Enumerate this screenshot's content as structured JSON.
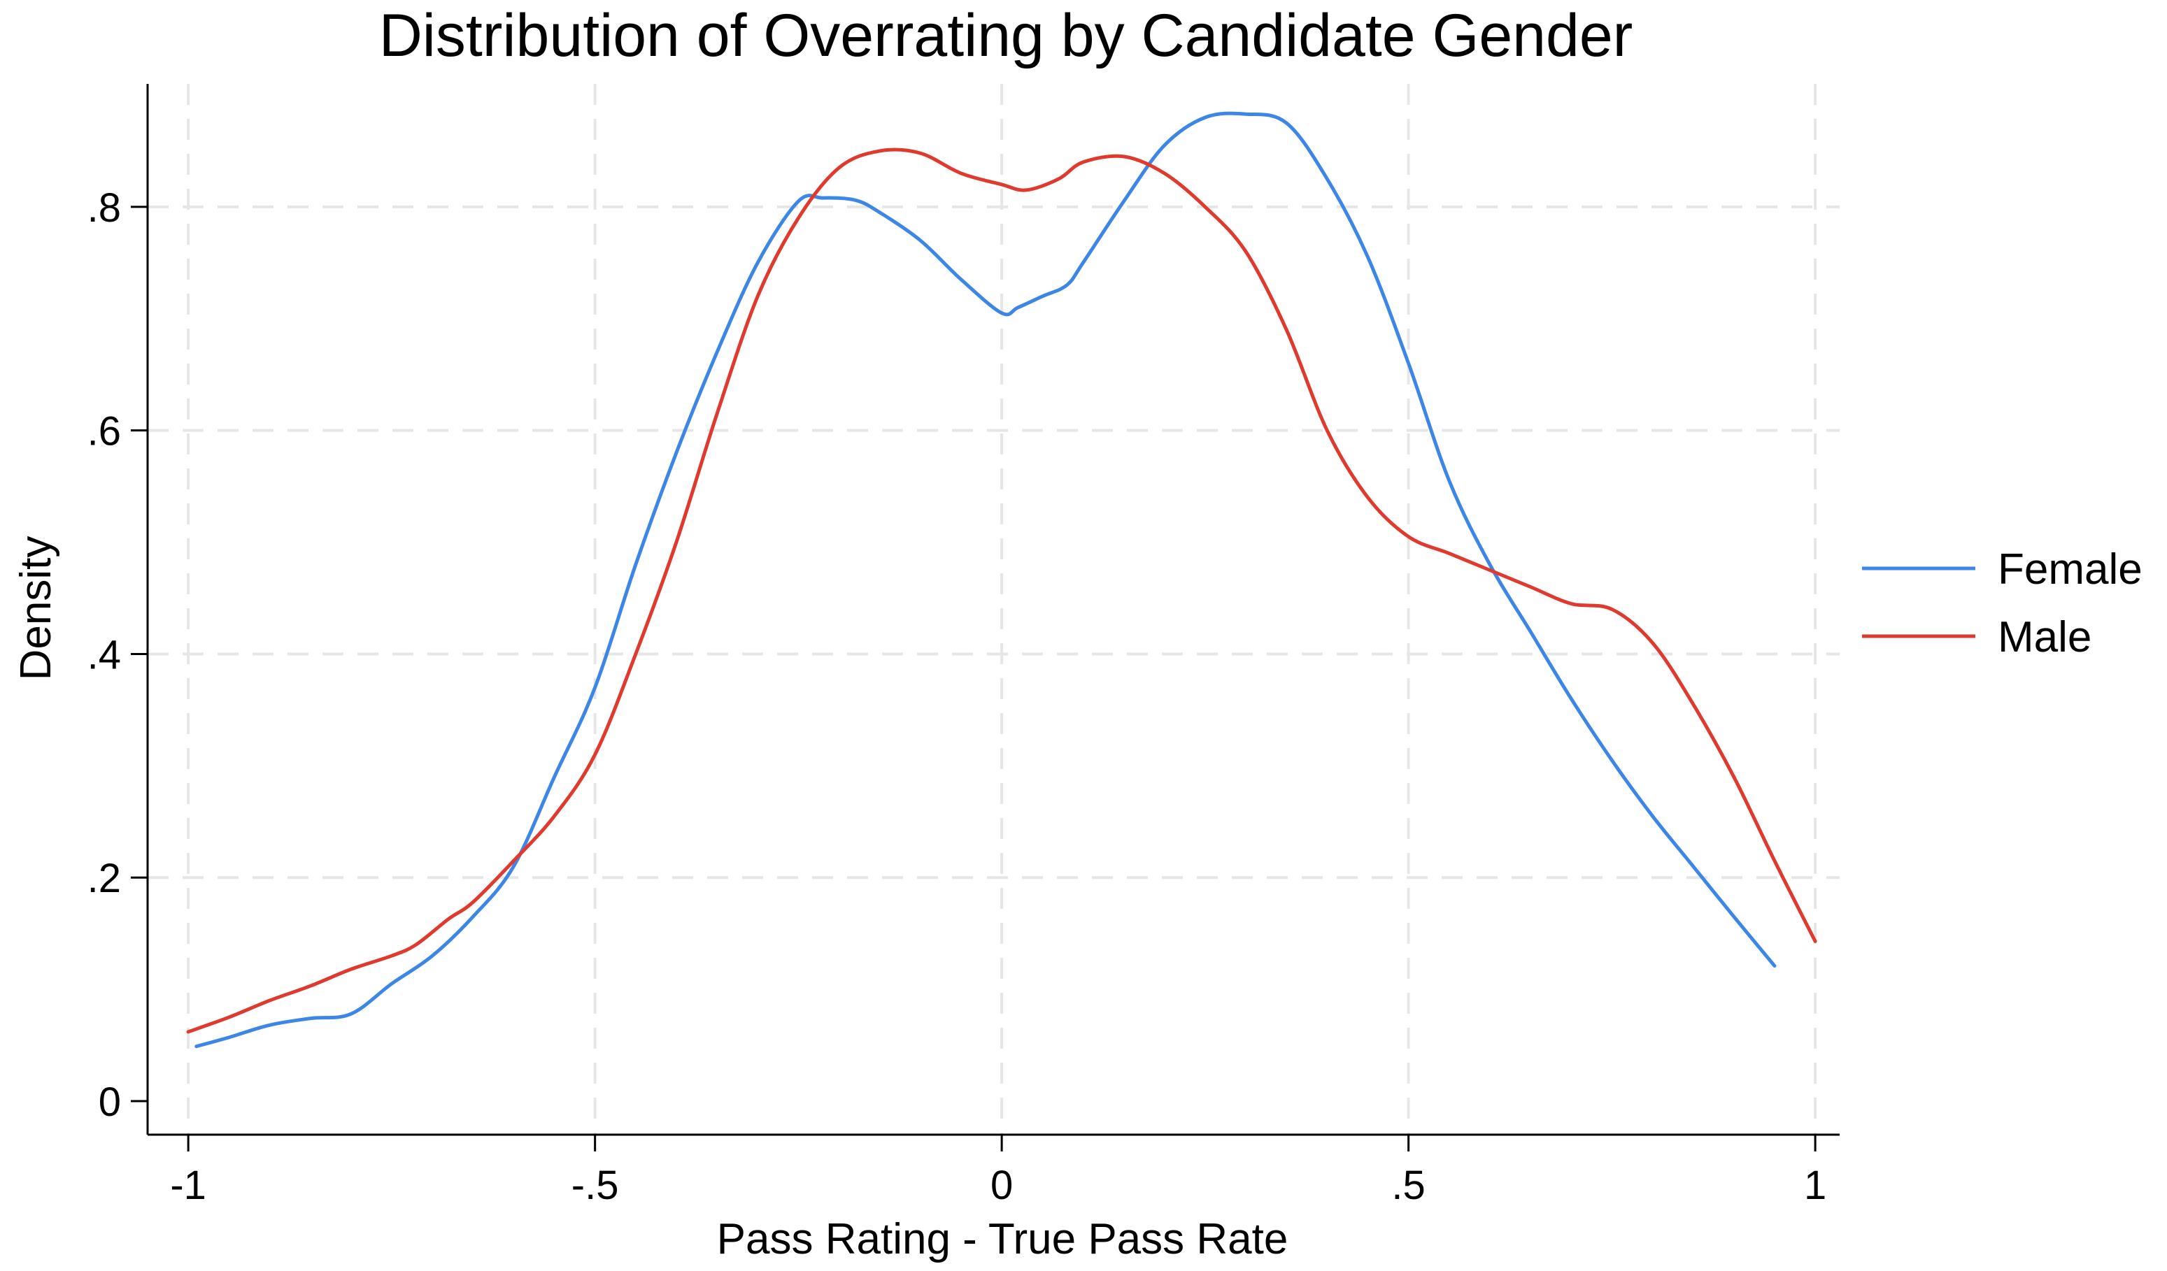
{
  "chart_data": {
    "type": "line",
    "title": "Distribution of Overrating by Candidate Gender",
    "xlabel": "Pass Rating - True Pass Rate",
    "ylabel": "Density",
    "xlim": [
      -1.05,
      1.03
    ],
    "ylim": [
      -0.03,
      0.91
    ],
    "x_ticks": [
      {
        "value": -1,
        "label": "-1"
      },
      {
        "value": -0.5,
        "label": "-.5"
      },
      {
        "value": 0,
        "label": "0"
      },
      {
        "value": 0.5,
        "label": ".5"
      },
      {
        "value": 1,
        "label": "1"
      }
    ],
    "y_ticks": [
      {
        "value": 0,
        "label": "0"
      },
      {
        "value": 0.2,
        "label": ".2"
      },
      {
        "value": 0.4,
        "label": ".4"
      },
      {
        "value": 0.6,
        "label": ".6"
      },
      {
        "value": 0.8,
        "label": ".8"
      }
    ],
    "grid": true,
    "legend_position": "right",
    "series": [
      {
        "name": "Female",
        "color": "#3c86e8",
        "x": [
          -0.99,
          -0.95,
          -0.9,
          -0.85,
          -0.8,
          -0.75,
          -0.7,
          -0.65,
          -0.6,
          -0.55,
          -0.5,
          -0.45,
          -0.4,
          -0.35,
          -0.3,
          -0.25,
          -0.22,
          -0.18,
          -0.15,
          -0.1,
          -0.05,
          0.0,
          0.02,
          0.05,
          0.08,
          0.1,
          0.15,
          0.2,
          0.25,
          0.3,
          0.35,
          0.4,
          0.45,
          0.5,
          0.55,
          0.6,
          0.65,
          0.7,
          0.75,
          0.8,
          0.85,
          0.9,
          0.95
        ],
        "y": [
          0.049,
          0.057,
          0.068,
          0.074,
          0.078,
          0.105,
          0.13,
          0.165,
          0.21,
          0.29,
          0.37,
          0.48,
          0.58,
          0.67,
          0.75,
          0.805,
          0.808,
          0.806,
          0.795,
          0.77,
          0.735,
          0.705,
          0.71,
          0.72,
          0.73,
          0.75,
          0.805,
          0.855,
          0.88,
          0.883,
          0.875,
          0.825,
          0.755,
          0.66,
          0.555,
          0.48,
          0.42,
          0.36,
          0.305,
          0.255,
          0.21,
          0.165,
          0.121
        ]
      },
      {
        "name": "Male",
        "color": "#e03a2e",
        "x": [
          -1.0,
          -0.95,
          -0.9,
          -0.85,
          -0.8,
          -0.75,
          -0.72,
          -0.68,
          -0.65,
          -0.6,
          -0.55,
          -0.5,
          -0.45,
          -0.4,
          -0.35,
          -0.3,
          -0.25,
          -0.2,
          -0.15,
          -0.1,
          -0.05,
          0.0,
          0.03,
          0.07,
          0.1,
          0.15,
          0.2,
          0.25,
          0.3,
          0.35,
          0.4,
          0.45,
          0.5,
          0.55,
          0.6,
          0.65,
          0.7,
          0.75,
          0.8,
          0.85,
          0.9,
          0.95,
          1.0
        ],
        "y": [
          0.062,
          0.075,
          0.09,
          0.103,
          0.118,
          0.13,
          0.14,
          0.163,
          0.178,
          0.215,
          0.255,
          0.31,
          0.4,
          0.5,
          0.615,
          0.72,
          0.79,
          0.835,
          0.85,
          0.848,
          0.83,
          0.82,
          0.815,
          0.825,
          0.84,
          0.845,
          0.83,
          0.8,
          0.76,
          0.69,
          0.6,
          0.54,
          0.505,
          0.49,
          0.475,
          0.46,
          0.445,
          0.44,
          0.41,
          0.355,
          0.29,
          0.215,
          0.143
        ]
      }
    ]
  }
}
